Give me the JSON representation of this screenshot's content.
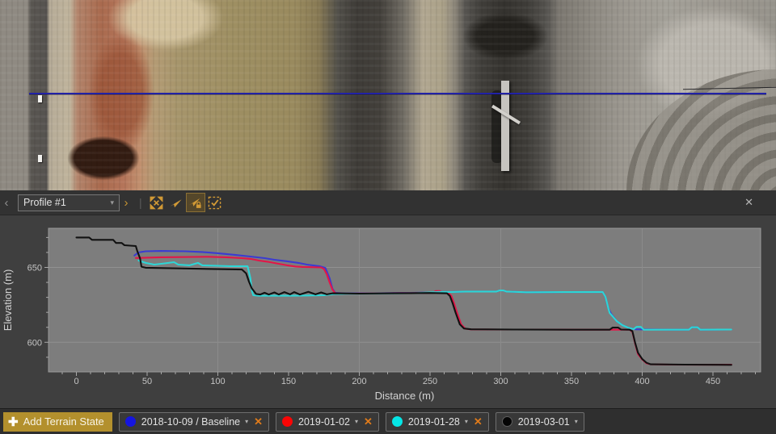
{
  "map": {
    "profile_line_color": "#2121a6"
  },
  "toolbar": {
    "prev_profile": "‹",
    "next_profile": "›",
    "profile_selector": {
      "value": "Profile #1",
      "caret": "▾"
    },
    "separator": "|",
    "icons": [
      "zoom-to-extents",
      "fly-to-profile",
      "fly-to-profile-locked",
      "edit-extent"
    ],
    "active_icon": "fly-to-profile-locked",
    "icon_color": "#d29a35",
    "close_label": "✕"
  },
  "chart_data": {
    "type": "line",
    "title": "",
    "xlabel": "Distance (m)",
    "ylabel": "Elevation (m)",
    "xlim": [
      -19.7,
      483.7
    ],
    "ylim": [
      580.2,
      676.2
    ],
    "x_ticks": [
      0,
      50,
      100,
      150,
      200,
      250,
      300,
      350,
      400,
      450
    ],
    "y_ticks": [
      600,
      650
    ],
    "minor_tick_step": 10,
    "grid": "on",
    "legend_position": "bottom-bar",
    "plot_bg": "#7d7d7d",
    "series": [
      {
        "name": "2018-10-09 / Baseline",
        "color": "#3b3bd1",
        "points": [
          [
            41,
            658
          ],
          [
            44,
            660
          ],
          [
            49,
            660.8
          ],
          [
            60,
            661
          ],
          [
            77,
            660.8
          ],
          [
            89,
            660.3
          ],
          [
            100,
            659.5
          ],
          [
            112,
            658.4
          ],
          [
            123,
            657.3
          ],
          [
            133,
            656.2
          ],
          [
            140,
            655.1
          ],
          [
            149,
            654.1
          ],
          [
            157,
            653
          ],
          [
            163,
            651.9
          ],
          [
            172,
            650.8
          ],
          [
            176,
            649.7
          ],
          [
            179,
            642.7
          ],
          [
            181,
            635.7
          ],
          [
            183,
            633
          ],
          [
            190,
            632.6
          ],
          [
            210,
            632.7
          ],
          [
            230,
            632.9
          ],
          [
            250,
            633.2
          ],
          [
            256,
            633.6
          ],
          [
            266,
            633.6
          ],
          [
            275,
            633.9
          ],
          [
            297,
            633.9
          ],
          [
            299,
            634.6
          ],
          [
            302,
            634.6
          ],
          [
            304,
            633.9
          ],
          [
            318,
            633.4
          ],
          [
            345,
            633.5
          ],
          [
            372,
            633.6
          ],
          [
            374,
            630.4
          ],
          [
            376,
            622.8
          ],
          [
            378,
            619
          ],
          [
            382,
            614.1
          ],
          [
            386,
            611.4
          ],
          [
            390,
            609.8
          ],
          [
            395,
            608.7
          ],
          [
            420,
            608.4
          ],
          [
            433,
            608.4
          ],
          [
            435,
            610
          ],
          [
            439,
            610
          ],
          [
            441,
            608.4
          ],
          [
            463,
            608.5
          ]
        ]
      },
      {
        "name": "2019-01-02",
        "color": "#e31648",
        "points": [
          [
            42,
            656.3
          ],
          [
            60,
            656.8
          ],
          [
            83,
            657
          ],
          [
            93,
            657.1
          ],
          [
            106,
            656.8
          ],
          [
            117,
            656.2
          ],
          [
            123,
            655.7
          ],
          [
            129,
            654.6
          ],
          [
            135,
            653.8
          ],
          [
            143,
            652.4
          ],
          [
            149,
            651.4
          ],
          [
            155,
            650.6
          ],
          [
            160,
            650.3
          ],
          [
            173,
            650
          ],
          [
            175,
            649
          ],
          [
            177,
            645.4
          ],
          [
            179,
            640
          ],
          [
            181,
            635.2
          ],
          [
            183,
            632.8
          ],
          [
            190,
            632.4
          ],
          [
            215,
            632.7
          ],
          [
            245,
            632.9
          ],
          [
            252,
            633
          ],
          [
            254,
            634.2
          ],
          [
            257,
            634.2
          ],
          [
            259,
            633
          ],
          [
            263,
            632.8
          ],
          [
            265,
            631
          ],
          [
            267,
            626
          ],
          [
            269,
            620
          ],
          [
            272,
            612
          ],
          [
            275,
            609
          ],
          [
            279,
            608.6
          ],
          [
            300,
            608.5
          ],
          [
            330,
            608.5
          ],
          [
            360,
            608.4
          ],
          [
            380,
            608.4
          ],
          [
            391,
            608.4
          ],
          [
            393,
            607
          ],
          [
            395,
            599
          ],
          [
            397,
            592
          ],
          [
            400,
            588.5
          ],
          [
            403,
            586
          ],
          [
            406,
            585.3
          ],
          [
            420,
            585.1
          ],
          [
            440,
            585
          ],
          [
            463,
            585
          ]
        ]
      },
      {
        "name": "2019-01-28",
        "color": "#2cd6d6",
        "points": [
          [
            44,
            654.6
          ],
          [
            49,
            653
          ],
          [
            55,
            651.9
          ],
          [
            60,
            652.4
          ],
          [
            69,
            653.5
          ],
          [
            72,
            651.9
          ],
          [
            80,
            651.4
          ],
          [
            86,
            653
          ],
          [
            89,
            651.4
          ],
          [
            100,
            651.1
          ],
          [
            109,
            650.8
          ],
          [
            121,
            650.8
          ],
          [
            123,
            642.7
          ],
          [
            124,
            634.6
          ],
          [
            125,
            631.4
          ],
          [
            129,
            631.1
          ],
          [
            152,
            631.1
          ],
          [
            175,
            631.4
          ],
          [
            183,
            632.2
          ],
          [
            192,
            632.4
          ],
          [
            215,
            632.6
          ],
          [
            240,
            632.8
          ],
          [
            256,
            633.6
          ],
          [
            266,
            633.6
          ],
          [
            275,
            633.9
          ],
          [
            297,
            633.9
          ],
          [
            299,
            634.6
          ],
          [
            302,
            634.6
          ],
          [
            304,
            633.9
          ],
          [
            318,
            633.4
          ],
          [
            345,
            633.5
          ],
          [
            372,
            633.6
          ],
          [
            374,
            630.4
          ],
          [
            375,
            626.6
          ],
          [
            376,
            622.8
          ],
          [
            377,
            619.5
          ],
          [
            379,
            617.4
          ],
          [
            382,
            614.1
          ],
          [
            386,
            611.4
          ],
          [
            390,
            609.8
          ],
          [
            394,
            608.8
          ],
          [
            396,
            610.3
          ],
          [
            399,
            610.3
          ],
          [
            401,
            608.4
          ],
          [
            420,
            608.4
          ],
          [
            433,
            608.4
          ],
          [
            435,
            610
          ],
          [
            439,
            610
          ],
          [
            441,
            608.4
          ],
          [
            463,
            608.5
          ]
        ]
      },
      {
        "name": "2019-03-01",
        "color": "#111111",
        "points": [
          [
            0,
            670
          ],
          [
            9,
            670
          ],
          [
            11,
            668.4
          ],
          [
            26,
            668.4
          ],
          [
            28,
            666.3
          ],
          [
            32,
            666.3
          ],
          [
            34,
            664.8
          ],
          [
            42,
            664.3
          ],
          [
            43,
            661
          ],
          [
            45,
            656
          ],
          [
            46,
            650.5
          ],
          [
            49,
            649.8
          ],
          [
            70,
            649.4
          ],
          [
            95,
            649
          ],
          [
            117,
            648.6
          ],
          [
            120,
            646
          ],
          [
            122,
            640.5
          ],
          [
            124,
            636
          ],
          [
            127,
            632.3
          ],
          [
            130,
            631.9
          ],
          [
            133,
            633.1
          ],
          [
            136,
            631.9
          ],
          [
            140,
            633.3
          ],
          [
            143,
            631.9
          ],
          [
            147,
            633.5
          ],
          [
            151,
            632
          ],
          [
            154,
            633.5
          ],
          [
            158,
            631.9
          ],
          [
            164,
            633.7
          ],
          [
            169,
            632
          ],
          [
            173,
            633.3
          ],
          [
            177,
            632
          ],
          [
            181,
            632.7
          ],
          [
            200,
            632.5
          ],
          [
            225,
            632.7
          ],
          [
            250,
            632.9
          ],
          [
            262,
            632.7
          ],
          [
            264,
            631
          ],
          [
            266,
            626
          ],
          [
            268,
            620
          ],
          [
            271,
            612
          ],
          [
            274,
            609.2
          ],
          [
            279,
            608.7
          ],
          [
            310,
            608.5
          ],
          [
            350,
            608.4
          ],
          [
            377,
            608.4
          ],
          [
            379,
            609.8
          ],
          [
            383,
            609.8
          ],
          [
            385,
            608.5
          ],
          [
            391,
            608.4
          ],
          [
            393,
            607.5
          ],
          [
            395,
            599.5
          ],
          [
            397,
            593
          ],
          [
            400,
            588.8
          ],
          [
            403,
            586.3
          ],
          [
            406,
            585.3
          ],
          [
            430,
            585.1
          ],
          [
            463,
            584.9
          ]
        ]
      }
    ]
  },
  "terrain_bar": {
    "add_label": "Add Terrain State",
    "add_plus": "✚",
    "chips": [
      {
        "label": "2018-10-09 / Baseline",
        "dot_color": "#1515e0",
        "caret": "▾",
        "removable": true,
        "remove_glyph": "✕"
      },
      {
        "label": "2019-01-02",
        "dot_color": "#fa0505",
        "caret": "▾",
        "removable": true,
        "remove_glyph": "✕"
      },
      {
        "label": "2019-01-28",
        "dot_color": "#05e6e6",
        "caret": "▾",
        "removable": true,
        "remove_glyph": "✕"
      },
      {
        "label": "2019-03-01",
        "dot_color": "#050505",
        "caret": "▾",
        "removable": false,
        "remove_glyph": "✕"
      }
    ]
  }
}
